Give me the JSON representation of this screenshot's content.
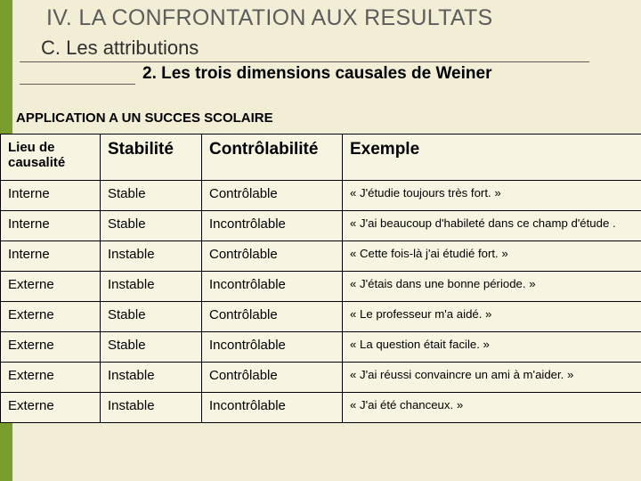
{
  "colors": {
    "background": "#f2eed6",
    "table_bg": "#f7f4e2",
    "accent_bar": "#7a9e2e",
    "title_gray": "#5c5c5c",
    "border": "#000000"
  },
  "title": {
    "main": "IV. LA CONFRONTATION AUX RESULTATS",
    "sub": "C. Les attributions",
    "subsub": "2. Les trois dimensions causales de Weiner",
    "application": "APPLICATION A UN SUCCES SCOLAIRE"
  },
  "table": {
    "headers": {
      "c0": "Lieu de causalité",
      "c1": "Stabilité",
      "c2": "Contrôlabilité",
      "c3": "Exemple"
    },
    "rows": [
      {
        "lieu": "Interne",
        "stab": "Stable",
        "ctrl": "Contrôlable",
        "ex": "« J'étudie toujours très fort. »"
      },
      {
        "lieu": "Interne",
        "stab": "Stable",
        "ctrl": "Incontrôlable",
        "ex": "« J'ai beaucoup d'habileté dans ce champ d'étude . "
      },
      {
        "lieu": "Interne",
        "stab": "Instable",
        "ctrl": "Contrôlable",
        "ex": "« Cette fois-là j'ai étudié fort. »"
      },
      {
        "lieu": "Externe",
        "stab": "Instable",
        "ctrl": "Incontrôlable",
        "ex": "« J'étais dans une bonne période. »"
      },
      {
        "lieu": "Externe",
        "stab": "Stable",
        "ctrl": "Contrôlable",
        "ex": "«  Le professeur m'a aidé. »"
      },
      {
        "lieu": "Externe",
        "stab": "Stable",
        "ctrl": "Incontrôlable",
        "ex": "« La question était facile. »"
      },
      {
        "lieu": "Externe",
        "stab": "Instable",
        "ctrl": "Contrôlable",
        "ex": "« J'ai réussi convaincre un ami à m'aider. »"
      },
      {
        "lieu": "Externe",
        "stab": "Instable",
        "ctrl": "Incontrôlable",
        "ex": "« J'ai été chanceux. »"
      }
    ]
  }
}
